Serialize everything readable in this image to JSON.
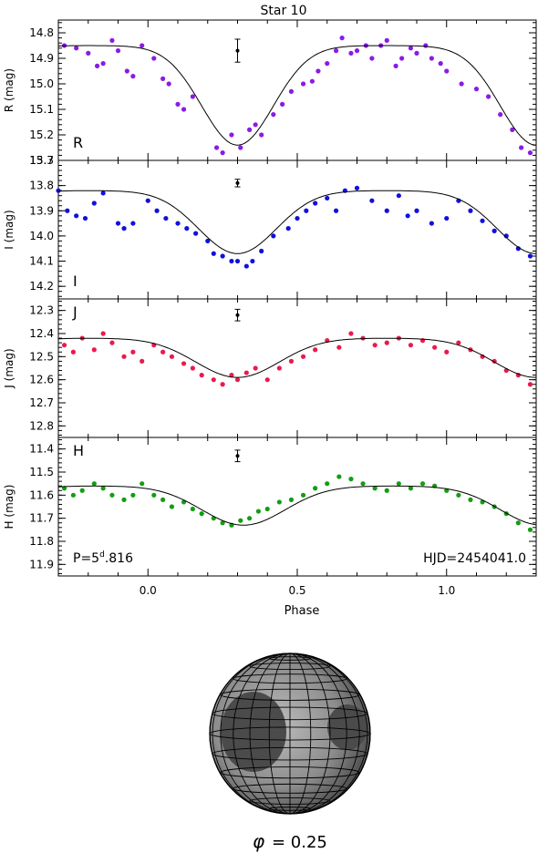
{
  "figure": {
    "title": "Star 10",
    "x_axis_label": "Phase",
    "period_prefix": "P=5",
    "period_unit": "d",
    "period_suffix": ".816",
    "epoch_label": "HJD=2454041.0",
    "phase_caption_symbol": "φ",
    "phase_caption_value": "= 0.25"
  },
  "chart_data": [
    {
      "type": "scatter",
      "band": "R",
      "title": "Star 10",
      "xlabel": "",
      "ylabel": "R (mag)",
      "xlim": [
        -0.3,
        1.3
      ],
      "ylim": [
        15.3,
        14.75
      ],
      "y_ticks": [
        "14.8",
        "14.9",
        "15.0",
        "15.1",
        "15.2",
        "15.3"
      ],
      "inverted_y": true,
      "grid": false,
      "point_color": "#8a1be6",
      "model": {
        "baseline": 14.85,
        "depth": 0.39,
        "minimum_phase": 0.3,
        "width": 0.12
      },
      "error_bar": {
        "x": 0.3,
        "y": 14.87,
        "err": 0.045
      },
      "points": {
        "x": [
          -0.28,
          -0.24,
          -0.2,
          -0.17,
          -0.15,
          -0.12,
          -0.1,
          -0.07,
          -0.05,
          -0.02,
          0.02,
          0.05,
          0.07,
          0.1,
          0.12,
          0.15,
          0.23,
          0.25,
          0.28,
          0.31,
          0.34,
          0.36,
          0.38,
          0.42,
          0.45,
          0.48,
          0.52,
          0.55,
          0.57,
          0.6,
          0.63,
          0.65,
          0.68,
          0.7,
          0.73,
          0.75,
          0.78,
          0.8,
          0.83,
          0.85,
          0.88,
          0.9,
          0.93,
          0.95,
          0.98,
          1.0,
          1.05,
          1.1,
          1.14,
          1.18,
          1.22,
          1.25,
          1.28
        ],
        "y": [
          14.85,
          14.86,
          14.88,
          14.93,
          14.92,
          14.83,
          14.87,
          14.95,
          14.97,
          14.85,
          14.9,
          14.98,
          15.0,
          15.08,
          15.1,
          15.05,
          15.25,
          15.27,
          15.2,
          15.25,
          15.18,
          15.16,
          15.2,
          15.12,
          15.08,
          15.03,
          15.0,
          14.99,
          14.95,
          14.92,
          14.87,
          14.82,
          14.88,
          14.87,
          14.85,
          14.9,
          14.85,
          14.83,
          14.93,
          14.9,
          14.86,
          14.88,
          14.85,
          14.9,
          14.92,
          14.95,
          15.0,
          15.02,
          15.05,
          15.12,
          15.18,
          15.25,
          15.27
        ]
      }
    },
    {
      "type": "scatter",
      "band": "I",
      "ylabel": "I (mag)",
      "xlim": [
        -0.3,
        1.3
      ],
      "ylim": [
        14.25,
        13.7
      ],
      "y_ticks": [
        "13.7",
        "13.8",
        "13.9",
        "14.0",
        "14.1",
        "14.2"
      ],
      "inverted_y": true,
      "grid": false,
      "point_color": "#1010e0",
      "model": {
        "baseline": 13.82,
        "depth": 0.25,
        "minimum_phase": 0.3,
        "width": 0.13
      },
      "error_bar": {
        "x": 0.3,
        "y": 13.79,
        "err": 0.015
      },
      "points": {
        "x": [
          -0.3,
          -0.27,
          -0.24,
          -0.21,
          -0.18,
          -0.15,
          -0.1,
          -0.08,
          -0.05,
          0.0,
          0.03,
          0.06,
          0.1,
          0.13,
          0.16,
          0.2,
          0.22,
          0.25,
          0.28,
          0.3,
          0.33,
          0.35,
          0.38,
          0.42,
          0.47,
          0.5,
          0.53,
          0.56,
          0.6,
          0.63,
          0.66,
          0.7,
          0.75,
          0.8,
          0.84,
          0.87,
          0.9,
          0.95,
          1.0,
          1.04,
          1.08,
          1.12,
          1.16,
          1.2,
          1.24,
          1.28
        ],
        "y": [
          13.82,
          13.9,
          13.92,
          13.93,
          13.87,
          13.83,
          13.95,
          13.97,
          13.95,
          13.86,
          13.9,
          13.93,
          13.95,
          13.97,
          13.99,
          14.02,
          14.07,
          14.08,
          14.1,
          14.1,
          14.12,
          14.1,
          14.06,
          14.0,
          13.97,
          13.93,
          13.9,
          13.87,
          13.85,
          13.9,
          13.82,
          13.81,
          13.86,
          13.9,
          13.84,
          13.92,
          13.9,
          13.95,
          13.93,
          13.86,
          13.9,
          13.94,
          13.98,
          14.0,
          14.05,
          14.08
        ]
      }
    },
    {
      "type": "scatter",
      "band": "J",
      "ylabel": "J (mag)",
      "xlim": [
        -0.3,
        1.3
      ],
      "ylim": [
        12.85,
        12.25
      ],
      "y_ticks": [
        "12.3",
        "12.4",
        "12.5",
        "12.6",
        "12.7",
        "12.8"
      ],
      "inverted_y": true,
      "grid": false,
      "point_color": "#ea1a4c",
      "model": {
        "baseline": 12.42,
        "depth": 0.17,
        "minimum_phase": 0.3,
        "width": 0.14
      },
      "error_bar": {
        "x": 0.3,
        "y": 12.32,
        "err": 0.025
      },
      "points": {
        "x": [
          -0.28,
          -0.25,
          -0.22,
          -0.18,
          -0.15,
          -0.12,
          -0.08,
          -0.05,
          -0.02,
          0.02,
          0.05,
          0.08,
          0.12,
          0.15,
          0.18,
          0.22,
          0.25,
          0.28,
          0.3,
          0.33,
          0.36,
          0.4,
          0.44,
          0.48,
          0.52,
          0.56,
          0.6,
          0.64,
          0.68,
          0.72,
          0.76,
          0.8,
          0.84,
          0.88,
          0.92,
          0.96,
          1.0,
          1.04,
          1.08,
          1.12,
          1.16,
          1.2,
          1.24,
          1.28
        ],
        "y": [
          12.45,
          12.48,
          12.42,
          12.47,
          12.4,
          12.44,
          12.5,
          12.48,
          12.52,
          12.45,
          12.48,
          12.5,
          12.53,
          12.55,
          12.58,
          12.6,
          12.62,
          12.58,
          12.6,
          12.57,
          12.55,
          12.6,
          12.55,
          12.52,
          12.5,
          12.47,
          12.43,
          12.46,
          12.4,
          12.42,
          12.45,
          12.44,
          12.42,
          12.45,
          12.43,
          12.46,
          12.48,
          12.44,
          12.47,
          12.5,
          12.52,
          12.56,
          12.58,
          12.62
        ]
      }
    },
    {
      "type": "scatter",
      "band": "H",
      "ylabel": "H (mag)",
      "xlim": [
        -0.3,
        1.3
      ],
      "ylim": [
        11.95,
        11.35
      ],
      "y_ticks": [
        "11.4",
        "11.5",
        "11.6",
        "11.7",
        "11.8",
        "11.9"
      ],
      "inverted_y": true,
      "grid": false,
      "point_color": "#119e11",
      "model": {
        "baseline": 11.56,
        "depth": 0.17,
        "minimum_phase": 0.32,
        "width": 0.14
      },
      "error_bar": {
        "x": 0.3,
        "y": 11.43,
        "err": 0.025
      },
      "points": {
        "x": [
          -0.28,
          -0.25,
          -0.22,
          -0.18,
          -0.15,
          -0.12,
          -0.08,
          -0.05,
          -0.02,
          0.02,
          0.05,
          0.08,
          0.12,
          0.15,
          0.18,
          0.22,
          0.25,
          0.28,
          0.31,
          0.34,
          0.37,
          0.4,
          0.44,
          0.48,
          0.52,
          0.56,
          0.6,
          0.64,
          0.68,
          0.72,
          0.76,
          0.8,
          0.84,
          0.88,
          0.92,
          0.96,
          1.0,
          1.04,
          1.08,
          1.12,
          1.16,
          1.2,
          1.24,
          1.28
        ],
        "y": [
          11.57,
          11.6,
          11.58,
          11.55,
          11.57,
          11.6,
          11.62,
          11.6,
          11.55,
          11.6,
          11.62,
          11.65,
          11.63,
          11.66,
          11.68,
          11.7,
          11.72,
          11.73,
          11.71,
          11.7,
          11.67,
          11.66,
          11.63,
          11.62,
          11.6,
          11.57,
          11.55,
          11.52,
          11.53,
          11.55,
          11.57,
          11.58,
          11.55,
          11.57,
          11.55,
          11.56,
          11.58,
          11.6,
          11.62,
          11.63,
          11.65,
          11.68,
          11.72,
          11.75
        ]
      }
    }
  ],
  "x_ticks": [
    "0.0",
    "0.5",
    "1.0"
  ]
}
